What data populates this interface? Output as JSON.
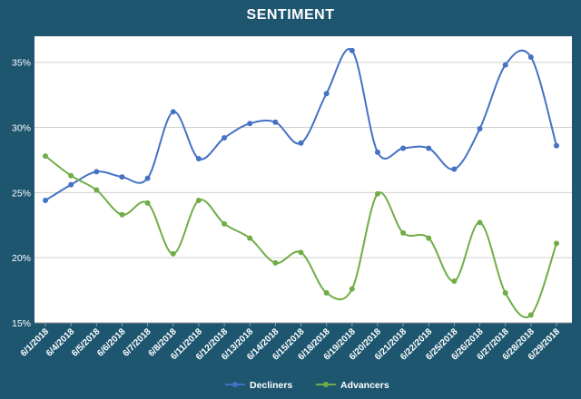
{
  "chart_data": {
    "type": "line",
    "title": "SENTIMENT",
    "xlabel": "",
    "ylabel": "",
    "ylim": [
      15,
      37
    ],
    "yticks": [
      15,
      20,
      25,
      30,
      35
    ],
    "ytick_labels": [
      "15%",
      "20%",
      "25%",
      "30%",
      "35%"
    ],
    "grid": true,
    "legend": "bottom",
    "categories": [
      "6/1/2018",
      "6/4/2018",
      "6/5/2018",
      "6/6/2018",
      "6/7/2018",
      "6/8/2018",
      "6/11/2018",
      "6/12/2018",
      "6/13/2018",
      "6/14/2018",
      "6/15/2018",
      "6/18/2018",
      "6/19/2018",
      "6/20/2018",
      "6/21/2018",
      "6/22/2018",
      "6/25/2018",
      "6/26/2018",
      "6/27/2018",
      "6/28/2018",
      "6/29/2018"
    ],
    "series": [
      {
        "name": "Decliners",
        "color": "#4472c4",
        "values": [
          24.4,
          25.6,
          26.6,
          26.2,
          26.1,
          31.2,
          27.6,
          29.2,
          30.3,
          30.4,
          28.8,
          32.6,
          35.9,
          28.1,
          28.4,
          28.4,
          26.8,
          29.9,
          34.8,
          35.4,
          28.6
        ]
      },
      {
        "name": "Advancers",
        "color": "#70ad47",
        "values": [
          27.8,
          26.3,
          25.2,
          23.3,
          24.2,
          20.3,
          24.4,
          22.6,
          21.5,
          19.6,
          20.4,
          17.3,
          17.6,
          24.9,
          21.9,
          21.5,
          18.2,
          22.7,
          17.3,
          15.6,
          21.1
        ]
      }
    ]
  }
}
